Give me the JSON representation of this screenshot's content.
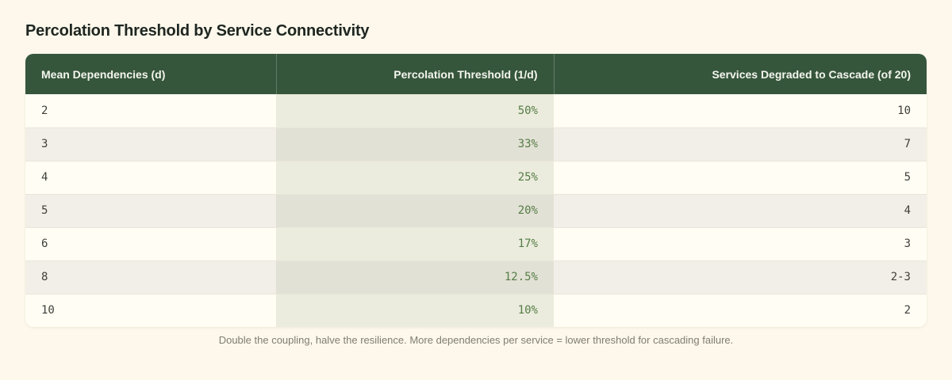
{
  "title": "Percolation Threshold by Service Connectivity",
  "table": {
    "columns": [
      {
        "label": "Mean Dependencies (d)",
        "align": "left"
      },
      {
        "label": "Percolation Threshold (1/d)",
        "align": "right"
      },
      {
        "label": "Services Degraded to Cascade (of 20)",
        "align": "right"
      }
    ],
    "rows": [
      {
        "d": "2",
        "threshold": "50%",
        "services": "10"
      },
      {
        "d": "3",
        "threshold": "33%",
        "services": "7"
      },
      {
        "d": "4",
        "threshold": "25%",
        "services": "5"
      },
      {
        "d": "5",
        "threshold": "20%",
        "services": "4"
      },
      {
        "d": "6",
        "threshold": "17%",
        "services": "3"
      },
      {
        "d": "8",
        "threshold": "12.5%",
        "services": "2-3"
      },
      {
        "d": "10",
        "threshold": "10%",
        "services": "2"
      }
    ]
  },
  "caption": "Double the coupling, halve the resilience. More dependencies per service = lower threshold for cascading failure.",
  "colors": {
    "page_background": "#fdf8eb",
    "header_background": "#36563c",
    "header_text": "#f4f6ee",
    "row_odd": "#fffdf4",
    "row_even": "#f2efe8",
    "threshold_cell_odd": "#ebecdd",
    "threshold_cell_even": "#e2e1d5",
    "threshold_text": "#557d46",
    "body_text": "#403f38",
    "title_text": "#1e2621",
    "caption_text": "#807d72"
  },
  "chart_data": {
    "type": "table",
    "title": "Percolation Threshold by Service Connectivity",
    "columns": [
      "Mean Dependencies (d)",
      "Percolation Threshold (1/d)",
      "Services Degraded to Cascade (of 20)"
    ],
    "rows": [
      [
        2,
        "50%",
        "10"
      ],
      [
        3,
        "33%",
        "7"
      ],
      [
        4,
        "25%",
        "5"
      ],
      [
        5,
        "20%",
        "4"
      ],
      [
        6,
        "17%",
        "3"
      ],
      [
        8,
        "12.5%",
        "2-3"
      ],
      [
        10,
        "10%",
        "2"
      ]
    ],
    "caption": "Double the coupling, halve the resilience. More dependencies per service = lower threshold for cascading failure."
  }
}
